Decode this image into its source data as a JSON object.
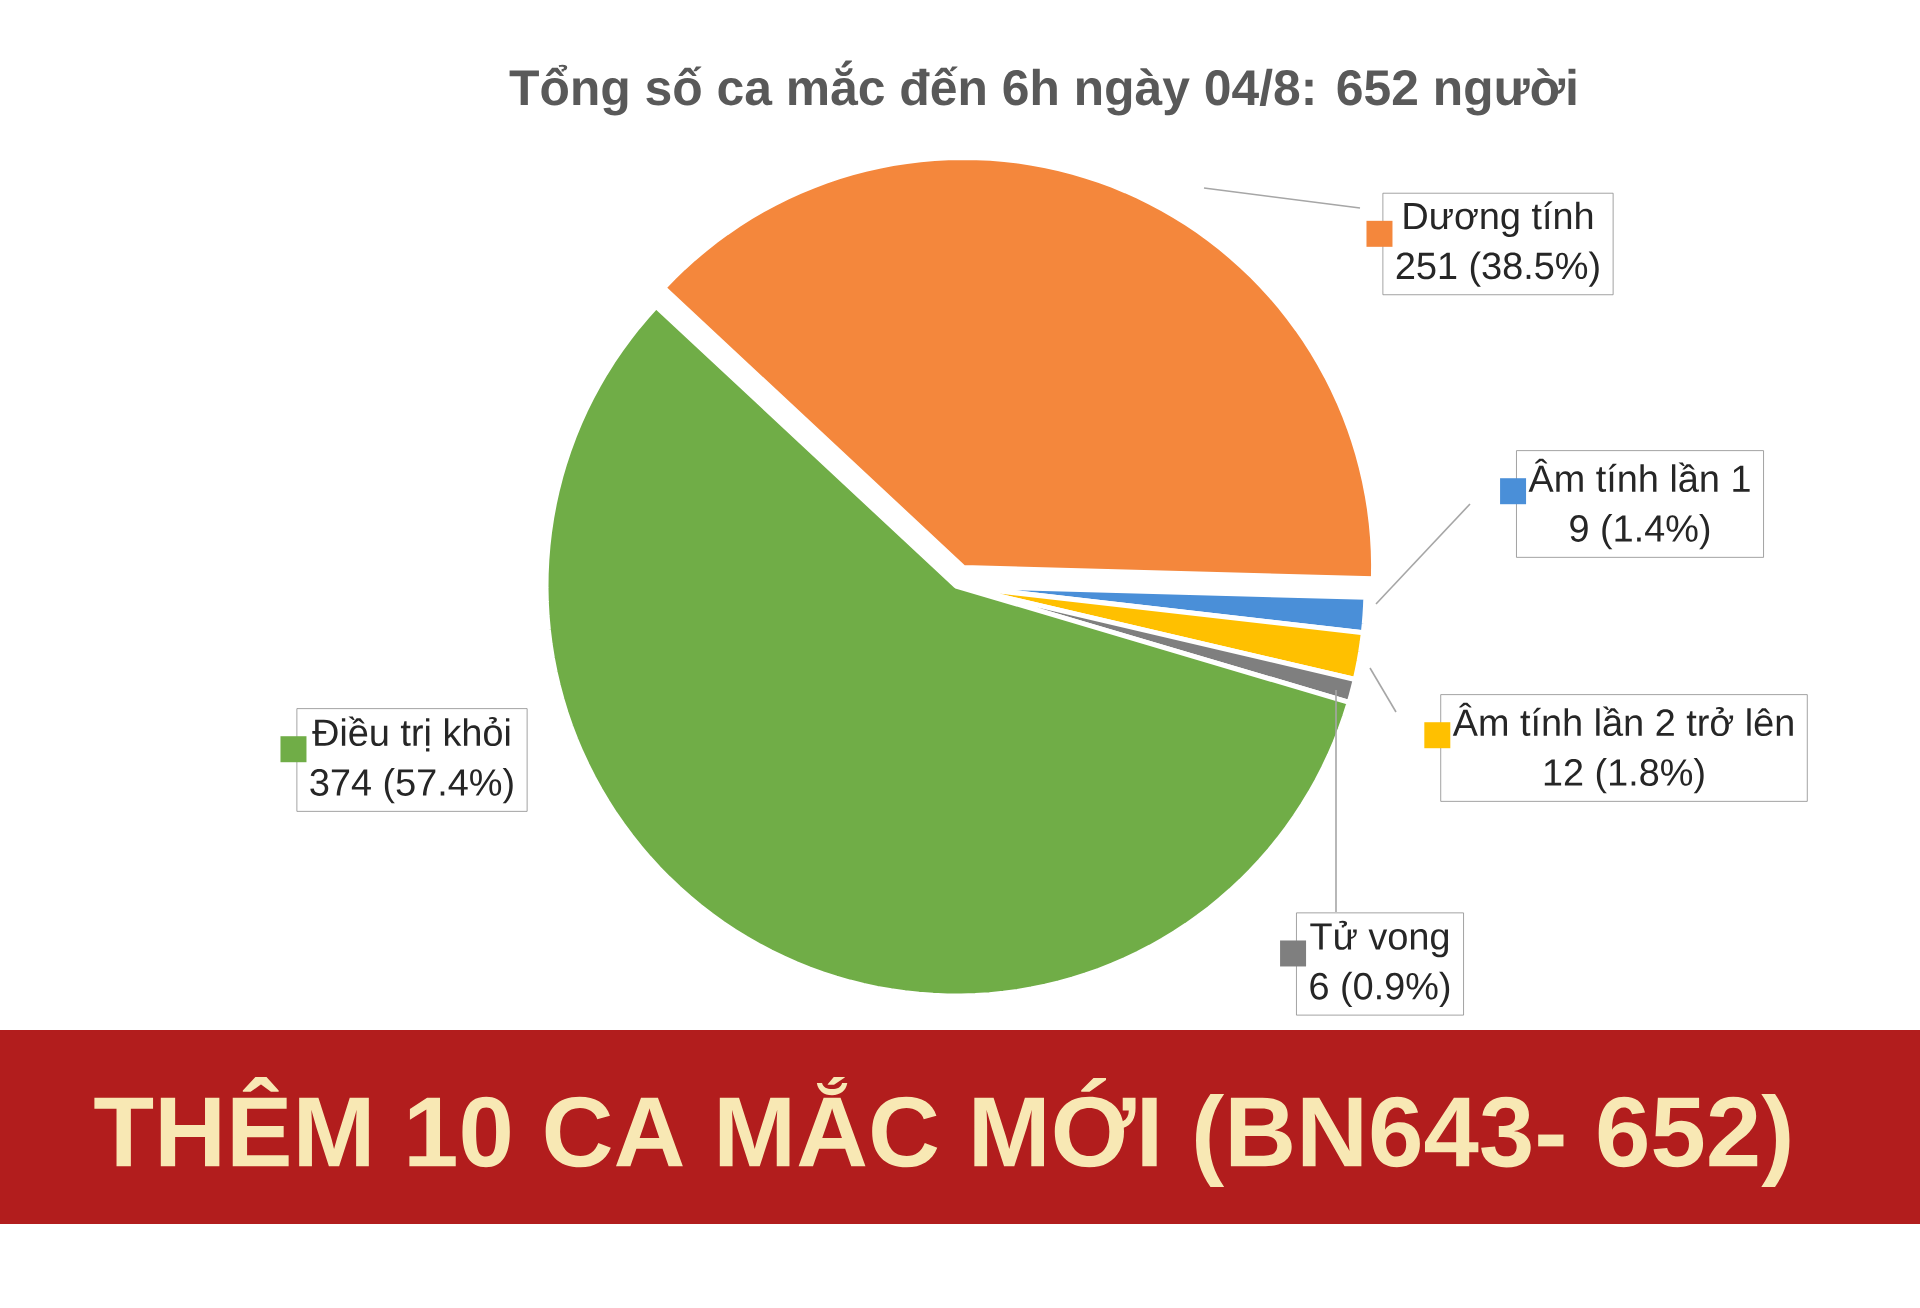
{
  "chart_data": {
    "type": "pie",
    "title": "Tổng số ca mắc đến 6h ngày 04/8: 652 người",
    "categories": [
      "Dương tính",
      "Âm tính lần 1",
      "Âm tính lần 2 trở lên",
      "Tử vong",
      "Điều trị khỏi"
    ],
    "values": [
      251,
      9,
      12,
      6,
      374
    ],
    "colors": [
      "#f4873c",
      "#4a8fd8",
      "#ffc000",
      "#7f7f7f",
      "#70ad47"
    ],
    "value_labels": [
      "251 (38.5%)",
      "9 (1.4%)",
      "12 (1.8%)",
      "6 (0.9%)",
      "374 (57.4%)"
    ],
    "legend": "right",
    "annotations": [
      "THÊM 10 CA MẮC MỚI (BN643- 652)"
    ]
  }
}
